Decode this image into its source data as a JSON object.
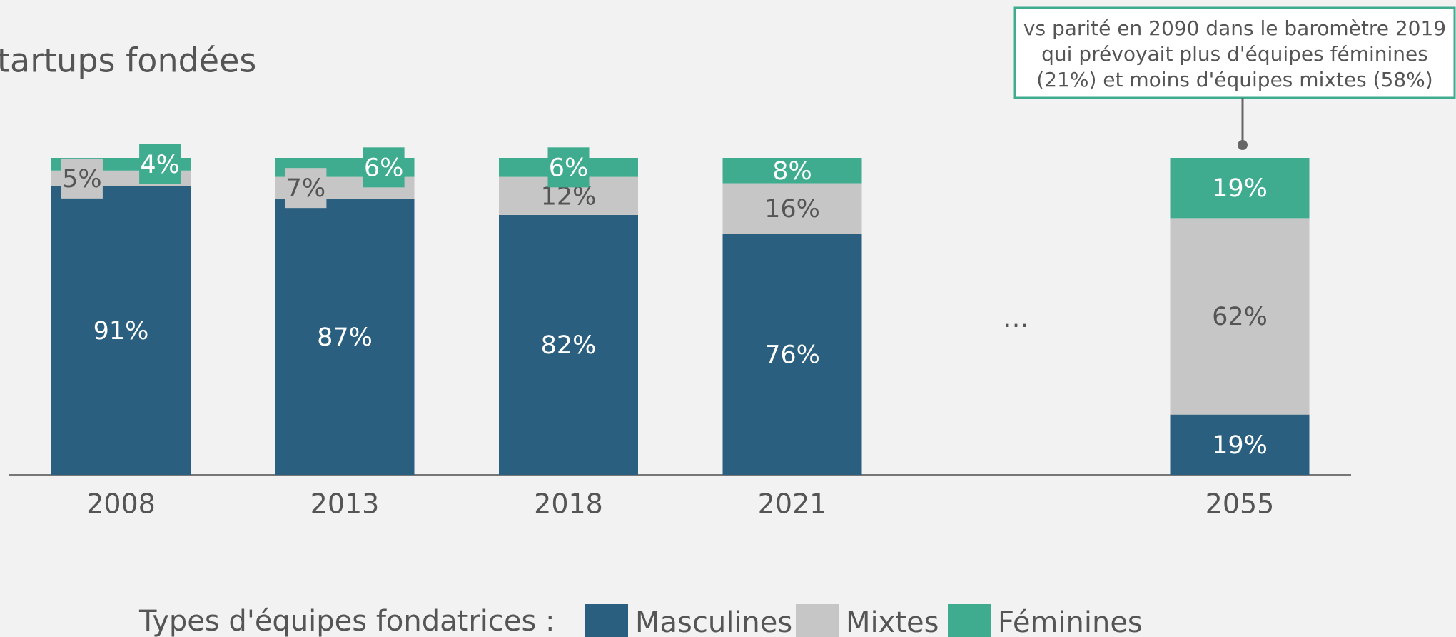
{
  "chart_data": {
    "type": "stacked_bar",
    "title": "tartups fondées",
    "categories": [
      "2008",
      "2013",
      "2018",
      "2021",
      "2055"
    ],
    "ellipsis": "…",
    "ylim": [
      0,
      100
    ],
    "series": [
      {
        "name": "Masculines",
        "color": "#2a5f80",
        "values": [
          91,
          87,
          82,
          76,
          19
        ],
        "value_labels": [
          "91%",
          "87%",
          "82%",
          "76%",
          "19%"
        ]
      },
      {
        "name": "Mixtes",
        "color": "#c6c6c6",
        "values": [
          5,
          7,
          12,
          16,
          62
        ],
        "value_labels": [
          "5%",
          "7%",
          "12%",
          "16%",
          "62%"
        ]
      },
      {
        "name": "Féminines",
        "color": "#3fac8f",
        "values": [
          4,
          6,
          6,
          8,
          19
        ],
        "value_labels": [
          "4%",
          "6%",
          "6%",
          "8%",
          "19%"
        ]
      }
    ],
    "legend_title": "Types d'équipes fondatrices :",
    "annotation": [
      "vs parité en 2090 dans le baromètre 2019",
      "qui prévoyait plus d'équipes féminines",
      "(21%) et moins d'équipes mixtes (58%)"
    ]
  }
}
